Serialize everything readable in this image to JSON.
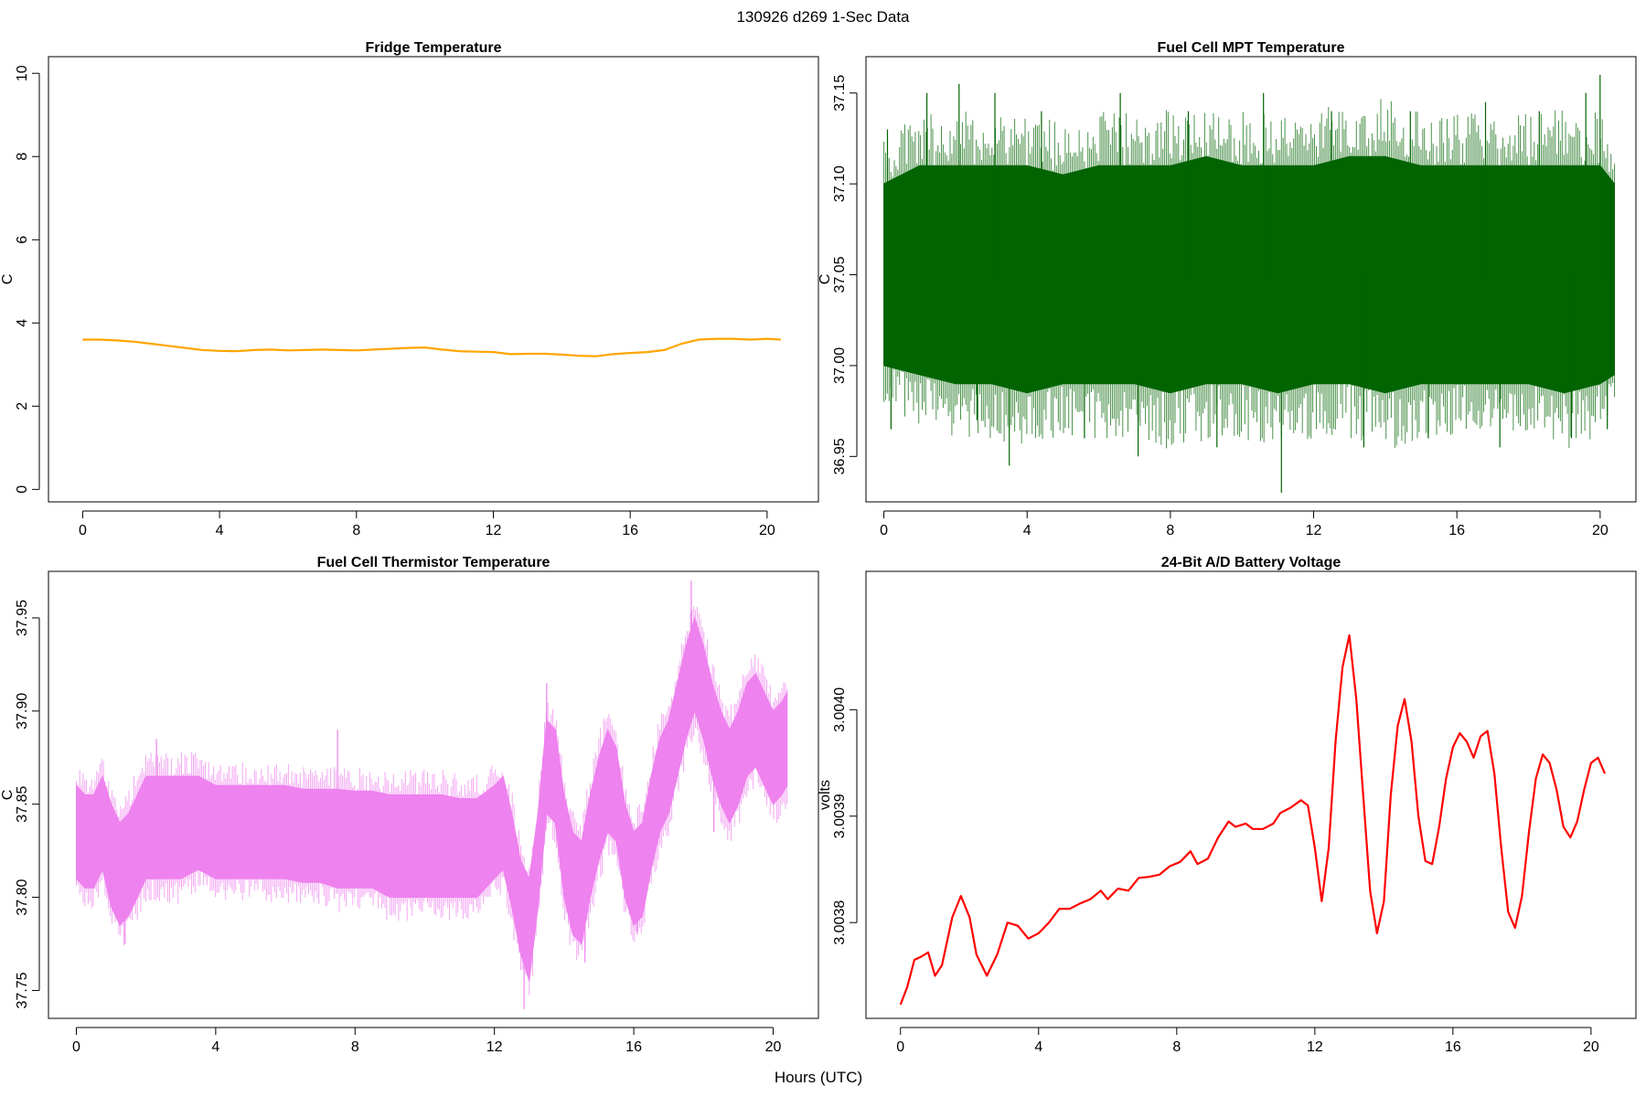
{
  "figure": {
    "title": "130926   d269   1-Sec Data",
    "xlabel": "Hours (UTC)"
  },
  "chart_data": [
    {
      "type": "line",
      "title": "Fridge Temperature",
      "ylabel": "C",
      "color": "#FFA500",
      "band": false,
      "xlim": [
        -1.0,
        21.5
      ],
      "ylim": [
        -0.3,
        10.4
      ],
      "xticks": [
        "0",
        "4",
        "8",
        "12",
        "16",
        "20"
      ],
      "yticks": [
        "0",
        "2",
        "4",
        "6",
        "8",
        "10"
      ],
      "x": [
        0,
        0.5,
        1,
        1.5,
        2,
        2.5,
        3,
        3.5,
        4,
        4.5,
        5,
        5.5,
        6,
        6.5,
        7,
        7.5,
        8,
        8.5,
        9,
        9.5,
        10,
        10.5,
        11,
        11.5,
        12,
        12.5,
        13,
        13.5,
        14,
        14.5,
        15,
        15.5,
        16,
        16.5,
        17,
        17.5,
        18,
        18.5,
        19,
        19.5,
        20,
        20.4
      ],
      "values": [
        3.6,
        3.6,
        3.58,
        3.55,
        3.5,
        3.45,
        3.4,
        3.35,
        3.33,
        3.32,
        3.35,
        3.36,
        3.34,
        3.35,
        3.36,
        3.35,
        3.34,
        3.36,
        3.38,
        3.4,
        3.41,
        3.36,
        3.32,
        3.31,
        3.3,
        3.25,
        3.26,
        3.26,
        3.24,
        3.21,
        3.2,
        3.25,
        3.28,
        3.3,
        3.35,
        3.5,
        3.6,
        3.62,
        3.62,
        3.6,
        3.62,
        3.6
      ]
    },
    {
      "type": "line",
      "title": "Fuel Cell MPT Temperature",
      "ylabel": "C",
      "color": "#006400",
      "band": true,
      "xlim": [
        -0.5,
        21.0
      ],
      "ylim": [
        36.925,
        37.17
      ],
      "xticks": [
        "0",
        "4",
        "8",
        "12",
        "16",
        "20"
      ],
      "yticks": [
        "36.95",
        "37.00",
        "37.05",
        "37.10",
        "37.15"
      ],
      "x": [
        0,
        1,
        2,
        3,
        4,
        5,
        6,
        7,
        8,
        9,
        10,
        11,
        12,
        13,
        14,
        15,
        16,
        17,
        18,
        19,
        20,
        20.4
      ],
      "values": [
        37.05,
        37.05,
        37.05,
        37.05,
        37.05,
        37.05,
        37.05,
        37.05,
        37.05,
        37.05,
        37.05,
        37.05,
        37.05,
        37.05,
        37.05,
        37.05,
        37.05,
        37.05,
        37.05,
        37.05,
        37.05,
        37.05
      ],
      "lower": [
        37.0,
        36.995,
        36.99,
        36.99,
        36.985,
        36.99,
        36.99,
        36.99,
        36.985,
        36.99,
        36.99,
        36.985,
        36.99,
        36.99,
        36.985,
        36.99,
        36.99,
        36.99,
        36.99,
        36.985,
        36.99,
        36.995
      ],
      "upper": [
        37.1,
        37.11,
        37.11,
        37.11,
        37.11,
        37.105,
        37.11,
        37.11,
        37.11,
        37.115,
        37.11,
        37.11,
        37.11,
        37.115,
        37.115,
        37.11,
        37.11,
        37.11,
        37.11,
        37.11,
        37.11,
        37.1
      ],
      "spikes": [
        [
          0.1,
          37.13
        ],
        [
          0.2,
          36.965
        ],
        [
          1.2,
          37.15
        ],
        [
          2.1,
          37.155
        ],
        [
          2.6,
          36.97
        ],
        [
          3.1,
          37.15
        ],
        [
          3.5,
          36.945
        ],
        [
          4.4,
          37.14
        ],
        [
          5.6,
          36.96
        ],
        [
          6.6,
          37.15
        ],
        [
          7.1,
          36.95
        ],
        [
          8.5,
          37.14
        ],
        [
          9.3,
          36.955
        ],
        [
          10.6,
          37.15
        ],
        [
          11.1,
          36.93
        ],
        [
          12.5,
          37.14
        ],
        [
          13.4,
          36.955
        ],
        [
          14.7,
          37.14
        ],
        [
          15.2,
          36.96
        ],
        [
          16.8,
          37.145
        ],
        [
          17.2,
          36.955
        ],
        [
          18.3,
          37.14
        ],
        [
          19.2,
          36.96
        ],
        [
          19.6,
          37.15
        ],
        [
          20.0,
          37.16
        ],
        [
          20.2,
          36.965
        ]
      ]
    },
    {
      "type": "line",
      "title": "Fuel Cell Thermistor Temperature",
      "ylabel": "C",
      "color": "#EE82EE",
      "band": true,
      "xlim": [
        -0.8,
        21.3
      ],
      "ylim": [
        37.735,
        37.975
      ],
      "xticks": [
        "0",
        "4",
        "8",
        "12",
        "16",
        "20"
      ],
      "yticks": [
        "37.75",
        "37.80",
        "37.85",
        "37.90",
        "37.95"
      ],
      "x": [
        0,
        0.25,
        0.5,
        0.75,
        1,
        1.25,
        1.5,
        1.75,
        2,
        2.5,
        3,
        3.5,
        4,
        4.5,
        5,
        5.5,
        6,
        6.5,
        7,
        7.5,
        8,
        8.5,
        9,
        9.5,
        10,
        10.5,
        11,
        11.5,
        12,
        12.25,
        12.5,
        12.75,
        13,
        13.25,
        13.5,
        13.75,
        14,
        14.25,
        14.5,
        14.75,
        15,
        15.25,
        15.5,
        15.75,
        16,
        16.25,
        16.5,
        16.75,
        17,
        17.25,
        17.5,
        17.75,
        18,
        18.25,
        18.5,
        18.75,
        19,
        19.25,
        19.5,
        19.75,
        20,
        20.25,
        20.4
      ],
      "values": [
        37.835,
        37.83,
        37.83,
        37.84,
        37.825,
        37.815,
        37.82,
        37.83,
        37.84,
        37.84,
        37.84,
        37.84,
        37.835,
        37.835,
        37.835,
        37.835,
        37.835,
        37.833,
        37.833,
        37.833,
        37.832,
        37.832,
        37.83,
        37.83,
        37.83,
        37.83,
        37.828,
        37.828,
        37.835,
        37.84,
        37.82,
        37.795,
        37.785,
        37.82,
        37.87,
        37.865,
        37.83,
        37.81,
        37.805,
        37.83,
        37.85,
        37.865,
        37.855,
        37.825,
        37.81,
        37.815,
        37.84,
        37.86,
        37.87,
        37.89,
        37.91,
        37.925,
        37.91,
        37.89,
        37.875,
        37.865,
        37.875,
        37.89,
        37.895,
        37.885,
        37.875,
        37.88,
        37.885
      ],
      "lower": [
        37.81,
        37.805,
        37.805,
        37.815,
        37.795,
        37.785,
        37.79,
        37.8,
        37.81,
        37.81,
        37.81,
        37.815,
        37.81,
        37.81,
        37.81,
        37.81,
        37.81,
        37.808,
        37.808,
        37.805,
        37.805,
        37.805,
        37.8,
        37.8,
        37.8,
        37.8,
        37.8,
        37.8,
        37.81,
        37.815,
        37.795,
        37.77,
        37.755,
        37.795,
        37.845,
        37.84,
        37.8,
        37.78,
        37.775,
        37.8,
        37.82,
        37.835,
        37.83,
        37.8,
        37.785,
        37.79,
        37.815,
        37.835,
        37.845,
        37.865,
        37.885,
        37.9,
        37.885,
        37.865,
        37.85,
        37.84,
        37.85,
        37.865,
        37.87,
        37.86,
        37.85,
        37.855,
        37.86
      ],
      "upper": [
        37.86,
        37.855,
        37.855,
        37.865,
        37.85,
        37.84,
        37.845,
        37.855,
        37.865,
        37.865,
        37.865,
        37.865,
        37.86,
        37.86,
        37.86,
        37.86,
        37.86,
        37.858,
        37.858,
        37.858,
        37.857,
        37.857,
        37.855,
        37.855,
        37.855,
        37.855,
        37.853,
        37.853,
        37.86,
        37.865,
        37.845,
        37.82,
        37.81,
        37.845,
        37.895,
        37.89,
        37.855,
        37.835,
        37.83,
        37.855,
        37.875,
        37.89,
        37.88,
        37.85,
        37.835,
        37.84,
        37.865,
        37.885,
        37.895,
        37.915,
        37.935,
        37.95,
        37.935,
        37.915,
        37.9,
        37.89,
        37.9,
        37.915,
        37.92,
        37.91,
        37.9,
        37.905,
        37.91
      ],
      "spikes": [
        [
          12.85,
          37.74
        ],
        [
          13.5,
          37.915
        ],
        [
          14.6,
          37.765
        ],
        [
          17.65,
          37.97
        ],
        [
          16.1,
          37.78
        ],
        [
          18.3,
          37.835
        ],
        [
          2.3,
          37.885
        ],
        [
          1.4,
          37.775
        ],
        [
          7.5,
          37.89
        ]
      ]
    },
    {
      "type": "line",
      "title": "24-Bit A/D Battery Voltage",
      "ylabel": "volts",
      "color": "#FF0000",
      "band": false,
      "xlim": [
        -1.0,
        21.3
      ],
      "ylim": [
        3.00371,
        3.00413
      ],
      "xticks": [
        "0",
        "4",
        "8",
        "12",
        "16",
        "20"
      ],
      "yticks": [
        "3.0038",
        "3.0039",
        "3.0040"
      ],
      "x": [
        0,
        0.2,
        0.4,
        0.6,
        0.8,
        1.0,
        1.2,
        1.5,
        1.75,
        2.0,
        2.2,
        2.5,
        2.8,
        3.1,
        3.4,
        3.7,
        4.0,
        4.3,
        4.6,
        4.9,
        5.2,
        5.5,
        5.8,
        6.0,
        6.3,
        6.6,
        6.9,
        7.2,
        7.5,
        7.8,
        8.1,
        8.4,
        8.6,
        8.9,
        9.2,
        9.5,
        9.7,
        10.0,
        10.2,
        10.5,
        10.8,
        11.0,
        11.3,
        11.6,
        11.8,
        12.0,
        12.2,
        12.4,
        12.6,
        12.8,
        13.0,
        13.2,
        13.4,
        13.6,
        13.8,
        14.0,
        14.2,
        14.4,
        14.6,
        14.8,
        15.0,
        15.2,
        15.4,
        15.6,
        15.8,
        16.0,
        16.2,
        16.4,
        16.6,
        16.8,
        17.0,
        17.2,
        17.4,
        17.6,
        17.8,
        18.0,
        18.2,
        18.4,
        18.6,
        18.8,
        19.0,
        19.2,
        19.4,
        19.6,
        19.8,
        20.0,
        20.2,
        20.4
      ],
      "values": [
        3.003723,
        3.00374,
        3.003765,
        3.003768,
        3.003772,
        3.00375,
        3.00376,
        3.003805,
        3.003825,
        3.003805,
        3.00377,
        3.00375,
        3.00377,
        3.0038,
        3.003797,
        3.003785,
        3.00379,
        3.0038,
        3.003813,
        3.003813,
        3.003818,
        3.003822,
        3.00383,
        3.003822,
        3.003832,
        3.00383,
        3.003842,
        3.003843,
        3.003845,
        3.003853,
        3.003857,
        3.003867,
        3.003855,
        3.00386,
        3.00388,
        3.003895,
        3.00389,
        3.003893,
        3.003888,
        3.003888,
        3.003893,
        3.003903,
        3.003908,
        3.003915,
        3.00391,
        3.00387,
        3.00382,
        3.00387,
        3.00397,
        3.00404,
        3.00407,
        3.00401,
        3.00392,
        3.00383,
        3.00379,
        3.00382,
        3.00392,
        3.003985,
        3.00401,
        3.00397,
        3.0039,
        3.003858,
        3.003855,
        3.00389,
        3.003935,
        3.003965,
        3.003978,
        3.00397,
        3.003955,
        3.003975,
        3.00398,
        3.00394,
        3.00387,
        3.00381,
        3.003795,
        3.003825,
        3.003885,
        3.003935,
        3.003958,
        3.00395,
        3.003925,
        3.00389,
        3.00388,
        3.003895,
        3.003925,
        3.00395,
        3.003955,
        3.00394
      ]
    }
  ]
}
